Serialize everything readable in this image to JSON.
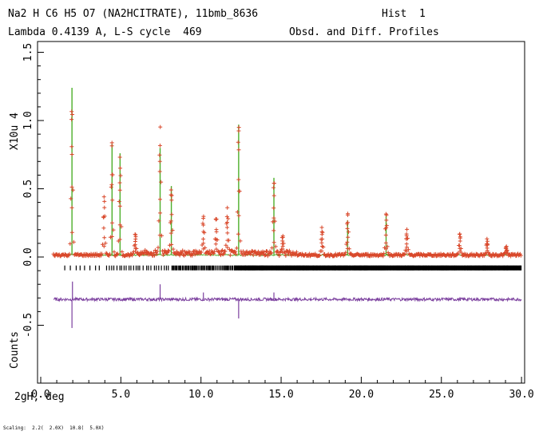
{
  "header": {
    "line1_left": "Na2 H C6 H5 O7 (NA2HCITRATE), 11bmb_8636",
    "line1_right": "Hist  1",
    "line2_left": "Lambda 0.4139 A, L-S cycle  469",
    "line2_right": "Obsd. and Diff. Profiles"
  },
  "footer": {
    "scaling": "Scaling:  2.2(  2.0X)  10.8(  5.0X)"
  },
  "chart_data": {
    "type": "line",
    "xlabel": "2gH, deg",
    "ylabel_top": "X10u 4",
    "ylabel_bottom": "Counts",
    "xlim": [
      0,
      30
    ],
    "ylim": [
      -0.75,
      1.55
    ],
    "x_ticks": [
      "0.0",
      "5.0",
      "10.0",
      "15.0",
      "20.0",
      "25.0",
      "30.0"
    ],
    "y_ticks": [
      "-0.5",
      "0.0",
      "0.5",
      "1.0",
      "1.5"
    ],
    "y_tick_values": [
      -0.5,
      0.0,
      0.5,
      1.0,
      1.5
    ],
    "x_tick_values": [
      0,
      5,
      10,
      15,
      20,
      25,
      30
    ],
    "series": [
      {
        "role": "observed",
        "color": "#d9482b",
        "background": 0.015,
        "x_range": [
          0.8,
          30.0
        ],
        "peaks": [
          {
            "x": 1.95,
            "y": 1.12
          },
          {
            "x": 3.95,
            "y": 0.42
          },
          {
            "x": 4.45,
            "y": 0.82
          },
          {
            "x": 4.95,
            "y": 0.74
          },
          {
            "x": 5.9,
            "y": 0.15
          },
          {
            "x": 7.45,
            "y": 0.93
          },
          {
            "x": 8.15,
            "y": 0.5
          },
          {
            "x": 10.15,
            "y": 0.27
          },
          {
            "x": 10.95,
            "y": 0.26
          },
          {
            "x": 11.65,
            "y": 0.33
          },
          {
            "x": 12.35,
            "y": 0.96
          },
          {
            "x": 14.55,
            "y": 0.56
          },
          {
            "x": 15.1,
            "y": 0.14
          },
          {
            "x": 17.55,
            "y": 0.2
          },
          {
            "x": 19.15,
            "y": 0.3
          },
          {
            "x": 21.55,
            "y": 0.31
          },
          {
            "x": 22.85,
            "y": 0.18
          },
          {
            "x": 26.15,
            "y": 0.16
          },
          {
            "x": 27.85,
            "y": 0.11
          },
          {
            "x": 29.05,
            "y": 0.06
          }
        ]
      },
      {
        "role": "calculated",
        "color": "#4caf2a",
        "peaks": [
          {
            "x": 1.95,
            "y": 1.24
          },
          {
            "x": 4.45,
            "y": 0.83
          },
          {
            "x": 4.95,
            "y": 0.76
          },
          {
            "x": 7.45,
            "y": 0.8
          },
          {
            "x": 8.15,
            "y": 0.52
          },
          {
            "x": 12.35,
            "y": 0.97
          },
          {
            "x": 14.55,
            "y": 0.58
          },
          {
            "x": 19.15,
            "y": 0.27
          },
          {
            "x": 21.55,
            "y": 0.3
          }
        ]
      },
      {
        "role": "difference",
        "color": "#7b3f9e",
        "offset": -0.31,
        "spikes": [
          {
            "x": 1.95,
            "y": -0.52
          },
          {
            "x": 1.98,
            "y": -0.18
          },
          {
            "x": 7.45,
            "y": -0.2
          },
          {
            "x": 10.15,
            "y": -0.26
          },
          {
            "x": 12.35,
            "y": -0.45
          },
          {
            "x": 14.55,
            "y": -0.26
          }
        ]
      },
      {
        "role": "reflection-ticks",
        "color": "#000000",
        "y": -0.08,
        "x_start": 1.5,
        "x_end": 30.0
      }
    ]
  }
}
